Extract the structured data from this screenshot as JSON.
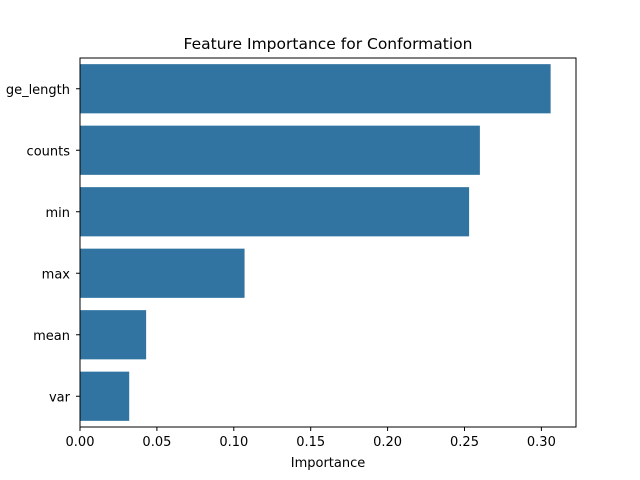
{
  "chart_data": {
    "type": "bar",
    "orientation": "horizontal",
    "title": "Feature Importance for Conformation",
    "xlabel": "Importance",
    "ylabel": "",
    "categories": [
      "ge_length",
      "counts",
      "min",
      "max",
      "mean",
      "var"
    ],
    "values": [
      0.306,
      0.26,
      0.253,
      0.107,
      0.043,
      0.032
    ],
    "xlim": [
      0,
      0.3225
    ],
    "xticks": [
      "0.00",
      "0.05",
      "0.10",
      "0.15",
      "0.20",
      "0.25",
      "0.30"
    ],
    "grid": false,
    "legend": "none",
    "bar_color": "#3274a1"
  }
}
